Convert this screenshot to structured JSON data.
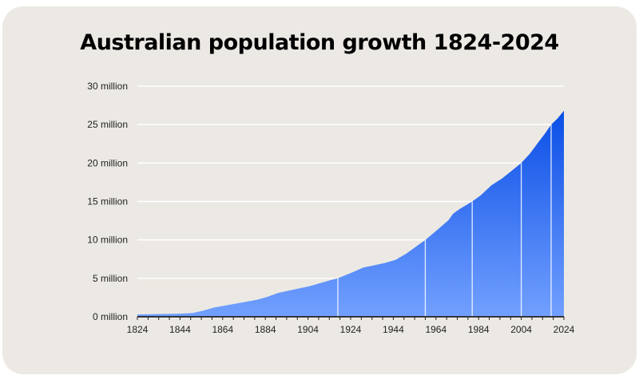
{
  "chart_data": {
    "type": "area",
    "title": "Australian population growth 1824-2024",
    "xlabel": "",
    "ylabel": "",
    "xlim": [
      1824,
      2024
    ],
    "ylim": [
      0,
      30
    ],
    "x_ticks": [
      "1824",
      "1844",
      "1864",
      "1884",
      "1904",
      "1924",
      "1944",
      "1964",
      "1984",
      "2004",
      "2024"
    ],
    "y_ticks": [
      "0 million",
      "5 million",
      "10 million",
      "15 million",
      "20 million",
      "25 million",
      "30 million"
    ],
    "grid": "horizontal",
    "series": [
      {
        "x": [
          1824,
          1834,
          1844,
          1850,
          1855,
          1860,
          1864,
          1870,
          1880,
          1885,
          1890,
          1895,
          1900,
          1905,
          1910,
          1915,
          1918,
          1925,
          1930,
          1935,
          1940,
          1945,
          1950,
          1955,
          1959,
          1965,
          1970,
          1972,
          1975,
          1981,
          1985,
          1990,
          1995,
          2000,
          2004,
          2008,
          2012,
          2015,
          2018,
          2021,
          2024
        ],
        "y": [
          0.3,
          0.35,
          0.4,
          0.5,
          0.8,
          1.2,
          1.4,
          1.7,
          2.2,
          2.6,
          3.1,
          3.4,
          3.7,
          4.0,
          4.4,
          4.8,
          5.0,
          5.8,
          6.4,
          6.7,
          7.0,
          7.4,
          8.2,
          9.2,
          10.0,
          11.4,
          12.6,
          13.4,
          14.0,
          15.0,
          15.8,
          17.1,
          18.0,
          19.1,
          20.0,
          21.2,
          22.7,
          23.8,
          25.0,
          25.8,
          26.8
        ]
      }
    ],
    "markers": [
      {
        "x": 1918,
        "y": 5
      },
      {
        "x": 1959,
        "y": 10
      },
      {
        "x": 1981,
        "y": 15
      },
      {
        "x": 2004,
        "y": 20
      },
      {
        "x": 2018,
        "y": 25
      }
    ],
    "colors": {
      "fill_top": "#0a4ee6",
      "fill_bottom": "#72a0ff",
      "background": "#ece9e4",
      "grid": "#ffffff",
      "axis": "#222222"
    }
  }
}
